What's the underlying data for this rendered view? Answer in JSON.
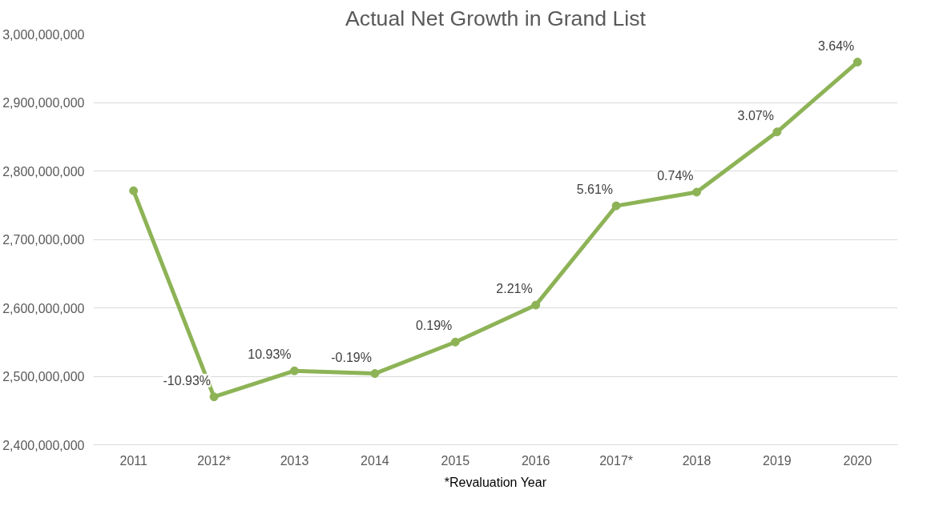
{
  "chart_data": {
    "type": "line",
    "title": "Actual Net Growth in Grand List",
    "categories": [
      "2011",
      "2012*",
      "2013",
      "2014",
      "2015",
      "2016",
      "2017*",
      "2018",
      "2019",
      "2020"
    ],
    "series": [
      {
        "color": "#8db356",
        "values": [
          2771000000,
          2470000000,
          2508000000,
          2504000000,
          2550000000,
          2604000000,
          2749000000,
          2769000000,
          2857000000,
          2959000000
        ]
      }
    ],
    "ylim": [
      2400000000,
      3000000000
    ],
    "yticks": [
      {
        "value": 2400000000,
        "label": "2,400,000,000"
      },
      {
        "value": 2500000000,
        "label": "2,500,000,000"
      },
      {
        "value": 2600000000,
        "label": "2,600,000,000"
      },
      {
        "value": 2700000000,
        "label": "2,700,000,000"
      },
      {
        "value": 2800000000,
        "label": "2,800,000,000"
      },
      {
        "value": 2900000000,
        "label": "2,900,000,000"
      },
      {
        "value": 3000000000,
        "label": "3,000,000,000"
      }
    ],
    "grid": "y",
    "marker": "circle",
    "line_style": "solid",
    "annotations": [
      {
        "text": "-10.93%",
        "x": "2012*",
        "y": 2470000000
      },
      {
        "text": "10.93%",
        "x": "2013",
        "y": 2508000000
      },
      {
        "text": "-0.19%",
        "x": "2014",
        "y": 2504000000
      },
      {
        "text": "0.19%",
        "x": "2015",
        "y": 2550000000
      },
      {
        "text": "2.21%",
        "x": "2016",
        "y": 2604000000
      },
      {
        "text": "5.61%",
        "x": "2017*",
        "y": 2749000000
      },
      {
        "text": "0.74%",
        "x": "2018",
        "y": 2769000000
      },
      {
        "text": "3.07%",
        "x": "2019",
        "y": 2857000000
      },
      {
        "text": "3.64%",
        "x": "2020",
        "y": 2959000000
      },
      "*Revaluation Year"
    ]
  }
}
